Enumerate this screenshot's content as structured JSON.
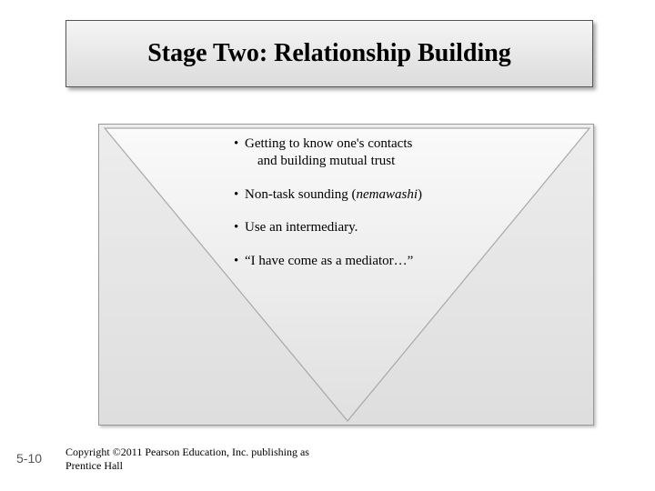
{
  "title": "Stage Two: Relationship Building",
  "bullets": [
    {
      "text_line1": "Getting to know one's contacts",
      "text_line2": "and building mutual trust"
    },
    {
      "text_html": "Non-task sounding (<span class=\"italic\">nemawashi</span>)"
    },
    {
      "text": "Use an intermediary."
    },
    {
      "text": "“I have come as a mediator…”"
    }
  ],
  "page_number": "5-10",
  "copyright_line1": "Copyright ©2011 Pearson Education, Inc. publishing as",
  "copyright_line2": "Prentice Hall",
  "colors": {
    "triangle_fill": "#f2f2f2",
    "triangle_stroke": "#a8a8a8"
  }
}
